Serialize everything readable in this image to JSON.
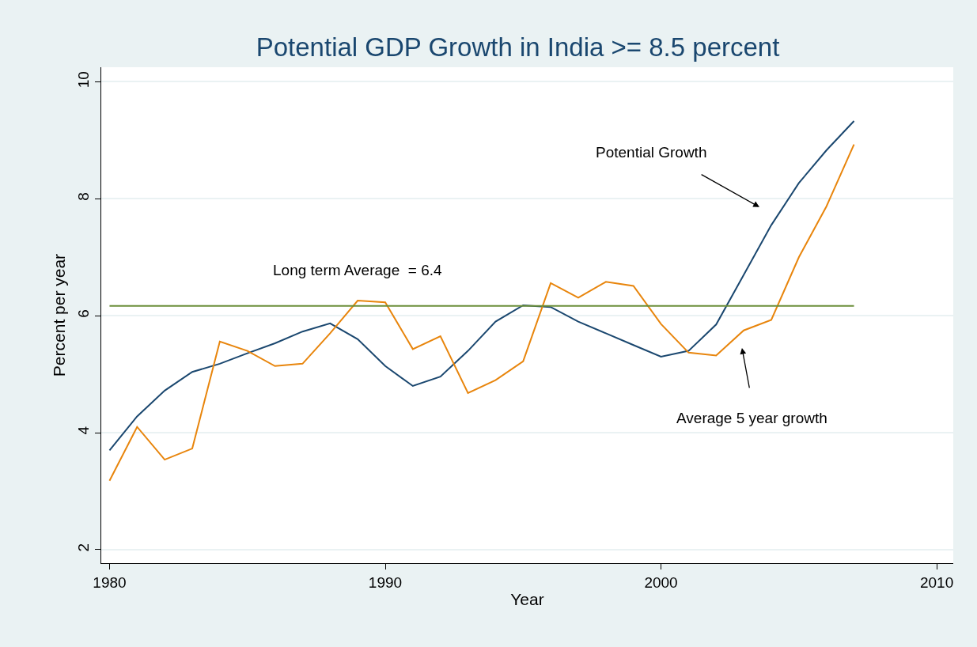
{
  "chart_data": {
    "type": "line",
    "title": "Potential GDP Growth in India >= 8.5 percent",
    "xlabel": "Year",
    "ylabel": "Percent per year",
    "x": [
      1980,
      1981,
      1982,
      1983,
      1984,
      1985,
      1986,
      1987,
      1988,
      1989,
      1990,
      1991,
      1992,
      1993,
      1994,
      1995,
      1996,
      1997,
      1998,
      1999,
      2000,
      2001,
      2002,
      2003,
      2004,
      2005,
      2006,
      2007
    ],
    "series": [
      {
        "color": "#1a476f",
        "values": [
          3.7,
          4.28,
          4.72,
          5.04,
          5.18,
          5.36,
          5.53,
          5.73,
          5.87,
          5.6,
          5.14,
          4.8,
          4.96,
          5.4,
          5.9,
          6.18,
          6.15,
          5.9,
          5.7,
          5.5,
          5.3,
          5.4,
          5.85,
          6.7,
          7.55,
          8.27,
          8.83,
          9.33
        ]
      },
      {
        "color": "#e8850c",
        "values": [
          3.18,
          4.1,
          3.54,
          3.73,
          5.56,
          5.4,
          5.14,
          5.18,
          5.7,
          6.26,
          6.23,
          5.43,
          5.65,
          4.68,
          4.9,
          5.22,
          6.56,
          6.31,
          6.58,
          6.51,
          5.86,
          5.37,
          5.32,
          5.75,
          5.93,
          7.0,
          7.87,
          8.93
        ]
      },
      {
        "color": "#6b8e3a",
        "values": [
          6.17,
          6.17,
          6.17,
          6.17,
          6.17,
          6.17,
          6.17,
          6.17,
          6.17,
          6.17,
          6.17,
          6.17,
          6.17,
          6.17,
          6.17,
          6.17,
          6.17,
          6.17,
          6.17,
          6.17,
          6.17,
          6.17,
          6.17,
          6.17,
          6.17,
          6.17,
          6.17,
          6.17
        ]
      }
    ],
    "annotations": [
      {
        "text": "Long term Average  = 6.4",
        "x": 1989,
        "y": 6.17
      },
      "Potential Growth",
      "Average 5 year growth"
    ],
    "xlim": [
      1979.7,
      2010.6
    ],
    "xticks": [
      1980,
      1990,
      2000,
      2010
    ],
    "ylim": [
      1.77,
      10.25
    ],
    "yticks": [
      2,
      4,
      6,
      8,
      10
    ],
    "grid": "y",
    "marker": "none",
    "line_style": "solid"
  }
}
